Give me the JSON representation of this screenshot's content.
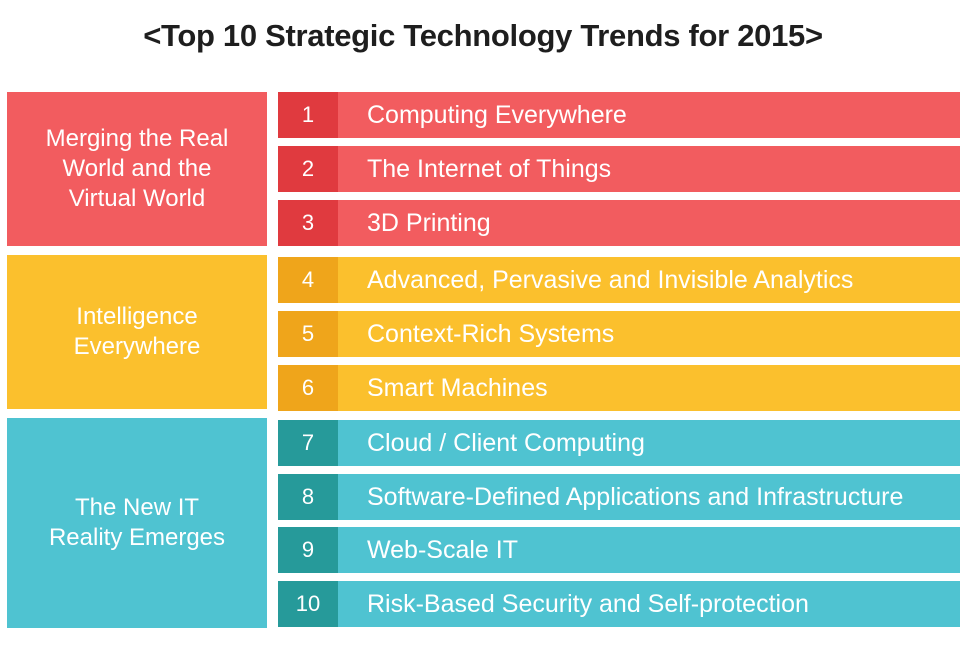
{
  "title": "<Top 10 Strategic Technology Trends for 2015>",
  "groups": [
    {
      "label": "Merging the Real\nWorld and the\nVirtual World",
      "color": "#f25c5f"
    },
    {
      "label": "Intelligence\nEverywhere",
      "color": "#fbc02d"
    },
    {
      "label": "The New IT\nReality Emerges",
      "color": "#4fc3d1"
    }
  ],
  "trends": [
    {
      "num": "1",
      "label": "Computing Everywhere"
    },
    {
      "num": "2",
      "label": "The Internet of Things"
    },
    {
      "num": "3",
      "label": "3D Printing"
    },
    {
      "num": "4",
      "label": "Advanced, Pervasive and Invisible Analytics"
    },
    {
      "num": "5",
      "label": "Context-Rich Systems"
    },
    {
      "num": "6",
      "label": "Smart Machines"
    },
    {
      "num": "7",
      "label": "Cloud / Client Computing"
    },
    {
      "num": "8",
      "label": "Software-Defined Applications and Infrastructure"
    },
    {
      "num": "9",
      "label": "Web-Scale IT"
    },
    {
      "num": "10",
      "label": "Risk-Based Security and Self-protection"
    }
  ]
}
